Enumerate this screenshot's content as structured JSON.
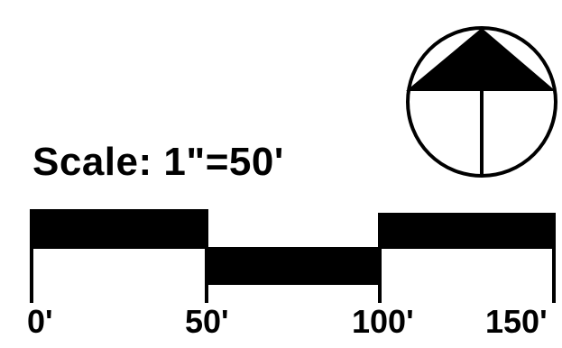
{
  "diagram": {
    "scale_text": "Scale: 1\"=50'",
    "scale_bar": {
      "labels": [
        "0'",
        "50'",
        "100'",
        "150'"
      ],
      "segments": [
        {
          "from": 0,
          "to": 50,
          "position": "upper"
        },
        {
          "from": 50,
          "to": 100,
          "position": "lower"
        },
        {
          "from": 100,
          "to": 150,
          "position": "upper"
        }
      ]
    },
    "north_arrow": {
      "icon": "north-arrow-icon",
      "fill_color": "#000000"
    },
    "colors": {
      "ink": "#000000",
      "background": "#ffffff"
    }
  }
}
